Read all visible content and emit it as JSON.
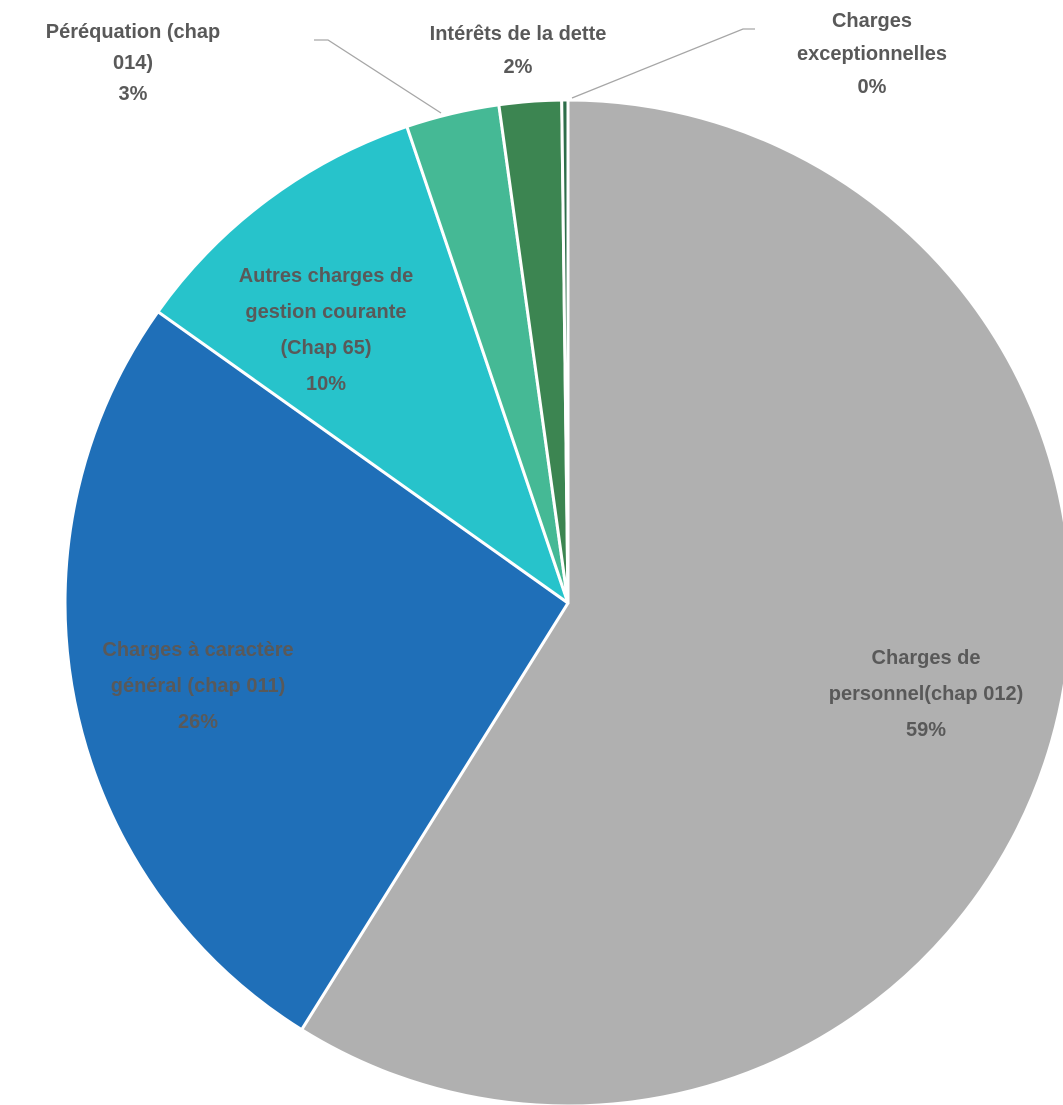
{
  "chart_data": {
    "type": "pie",
    "title": "",
    "start_angle_deg": 0,
    "direction": "clockwise",
    "legend": "none",
    "slices": [
      {
        "label": "Charges de personnel(chap 012)",
        "label_lines": [
          "Charges de",
          "personnel(chap 012)"
        ],
        "value": 59,
        "value_label": "59%",
        "color": "#b0b0b0"
      },
      {
        "label": "Charges à caractère général  (chap 011)",
        "label_lines": [
          "Charges à caractère",
          "général  (chap 011)"
        ],
        "value": 26,
        "value_label": "26%",
        "color": "#1f6fb8"
      },
      {
        "label": "Autres charges de gestion courante (Chap 65)",
        "label_lines": [
          "Autres charges de",
          "gestion courante",
          "(Chap 65)"
        ],
        "value": 10,
        "value_label": "10%",
        "color": "#27c3cb"
      },
      {
        "label": "Péréquation (chap 014)",
        "label_lines": [
          "Péréquation (chap",
          "014)"
        ],
        "value": 3,
        "value_label": "3%",
        "color": "#45b995"
      },
      {
        "label": "Intérêts de la dette",
        "label_lines": [
          "Intérêts de la dette"
        ],
        "value": 2,
        "value_label": "2%",
        "color": "#3c8551"
      },
      {
        "label": "Charges exceptionnelles",
        "label_lines": [
          "Charges",
          "exceptionnelles"
        ],
        "value": 0.2,
        "value_label": "0%",
        "color": "#2e6e4a"
      }
    ]
  }
}
